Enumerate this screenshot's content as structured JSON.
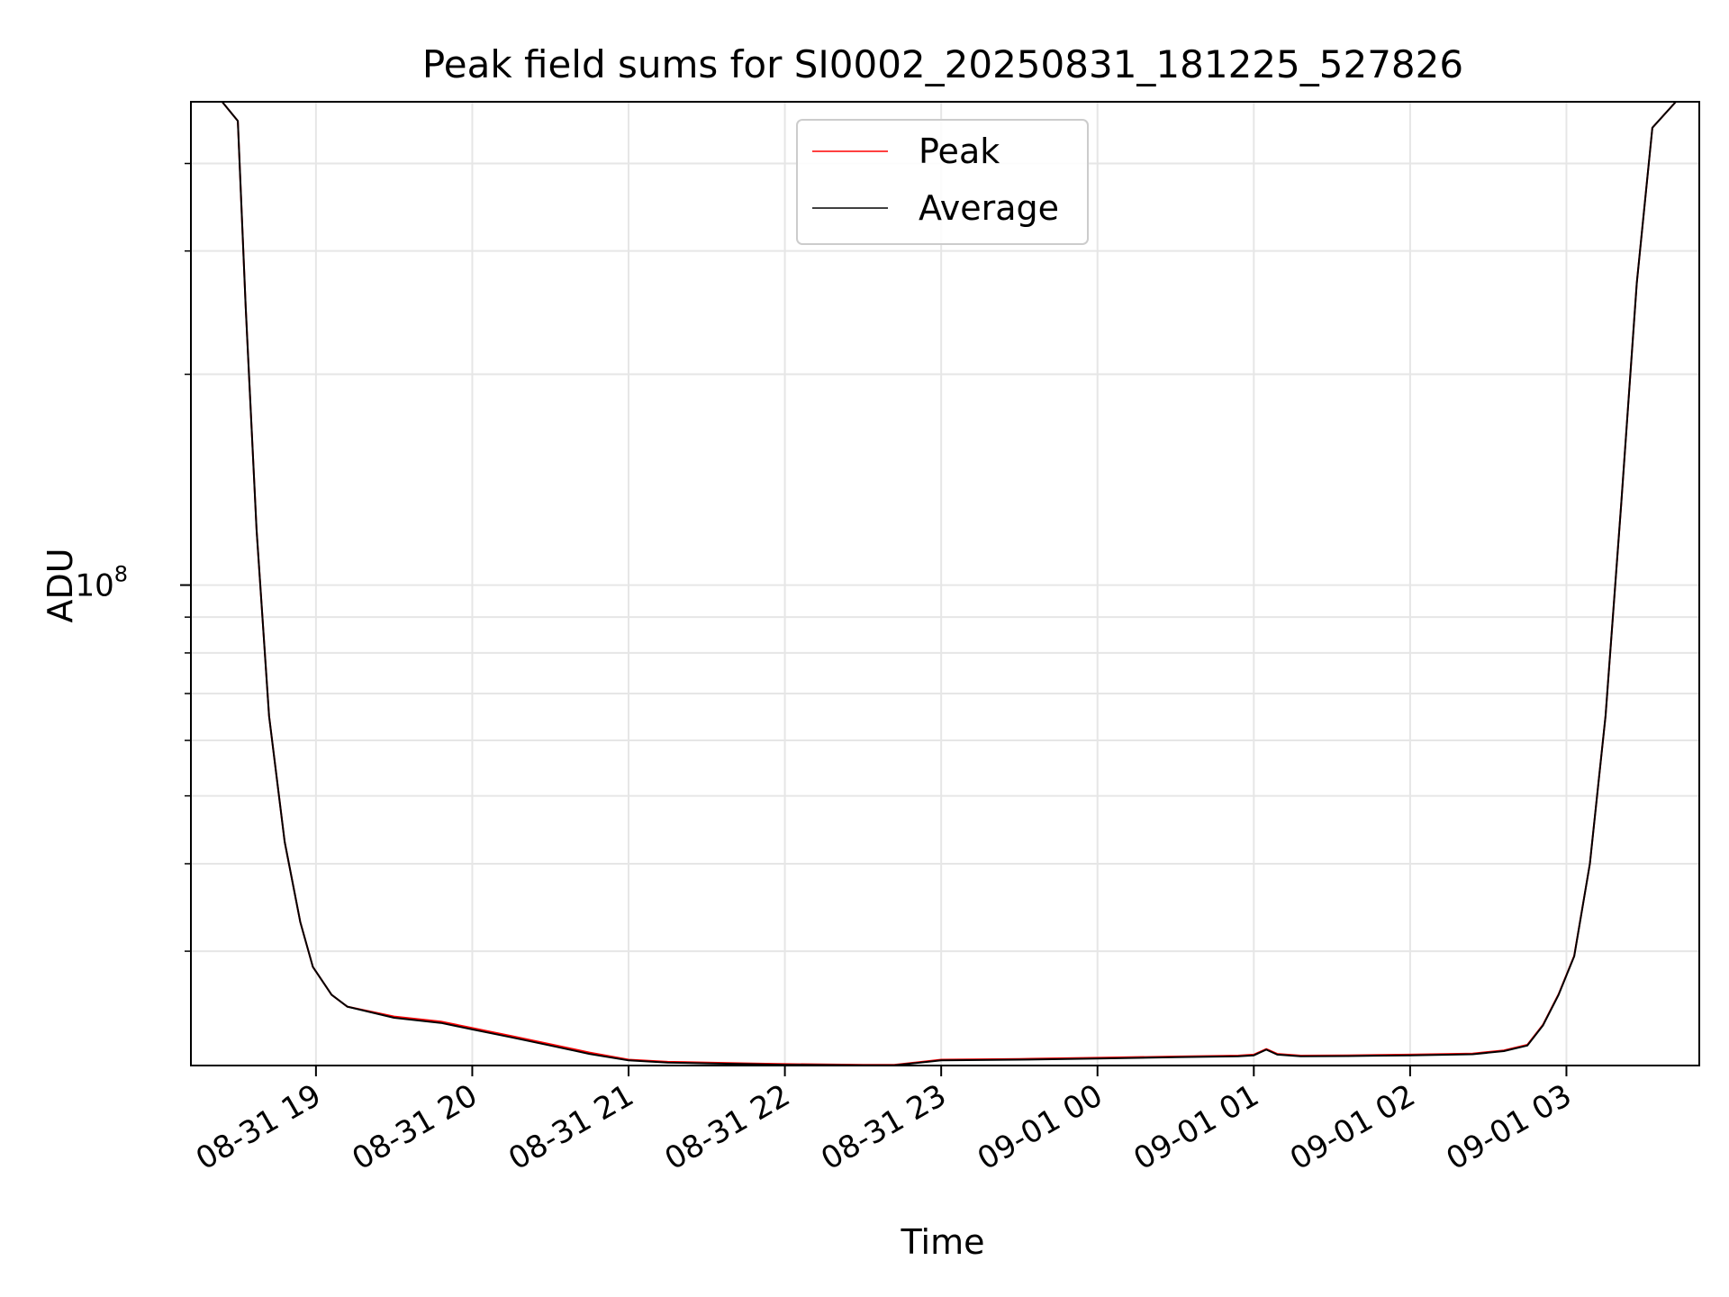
{
  "chart_data": {
    "type": "line",
    "title": "Peak field sums for SI0002_20250831_181225_527826",
    "xlabel": "Time",
    "ylabel": "ADU",
    "yscale": "log",
    "ylim": [
      20600000,
      490000000
    ],
    "xlim_hours": [
      18.2,
      27.85
    ],
    "grid": true,
    "legend_position": "top-center",
    "x_ticks": [
      {
        "hour": 19,
        "label": "08-31 19"
      },
      {
        "hour": 20,
        "label": "08-31 20"
      },
      {
        "hour": 21,
        "label": "08-31 21"
      },
      {
        "hour": 22,
        "label": "08-31 22"
      },
      {
        "hour": 23,
        "label": "08-31 23"
      },
      {
        "hour": 24,
        "label": "09-01 00"
      },
      {
        "hour": 25,
        "label": "09-01 01"
      },
      {
        "hour": 26,
        "label": "09-01 02"
      },
      {
        "hour": 27,
        "label": "09-01 03"
      }
    ],
    "y_major_ticks": [
      {
        "value": 100000000,
        "base": "10",
        "exp": "8"
      }
    ],
    "y_minor_ticks": [
      30000000,
      40000000,
      50000000,
      60000000,
      70000000,
      80000000,
      90000000,
      200000000,
      300000000,
      400000000
    ],
    "series": [
      {
        "name": "Average",
        "color": "#000000",
        "x_hours": [
          18.2,
          18.4,
          18.5,
          18.55,
          18.62,
          18.7,
          18.8,
          18.9,
          18.98,
          19.1,
          19.2,
          19.5,
          19.8,
          20.0,
          20.25,
          20.5,
          20.75,
          21.0,
          21.25,
          21.5,
          21.75,
          22.0,
          22.5,
          22.7,
          23.0,
          23.5,
          24.0,
          24.5,
          24.9,
          25.0,
          25.08,
          25.15,
          25.3,
          25.6,
          26.0,
          26.4,
          26.6,
          26.75,
          26.85,
          26.95,
          27.05,
          27.15,
          27.25,
          27.35,
          27.45,
          27.55,
          27.7,
          27.85
        ],
        "values": [
          490000000,
          490000000,
          460000000,
          250000000,
          120000000,
          65000000,
          43000000,
          33000000,
          28500000,
          26000000,
          25000000,
          24100000,
          23700000,
          23200000,
          22600000,
          22000000,
          21400000,
          20950000,
          20800000,
          20750000,
          20700000,
          20650000,
          20620000,
          20610000,
          20950000,
          21000000,
          21080000,
          21170000,
          21230000,
          21300000,
          21700000,
          21350000,
          21230000,
          21250000,
          21300000,
          21380000,
          21600000,
          22000000,
          23500000,
          26000000,
          29500000,
          40000000,
          65000000,
          130000000,
          270000000,
          450000000,
          490000000,
          490000000
        ]
      },
      {
        "name": "Peak",
        "color": "#ff0000",
        "x_hours": [
          18.2,
          18.4,
          18.5,
          18.55,
          18.62,
          18.7,
          18.8,
          18.9,
          18.98,
          19.1,
          19.2,
          19.5,
          19.8,
          20.0,
          20.25,
          20.5,
          20.75,
          21.0,
          21.25,
          21.5,
          21.75,
          22.0,
          22.5,
          22.7,
          23.0,
          23.5,
          24.0,
          24.5,
          24.9,
          25.0,
          25.08,
          25.15,
          25.3,
          25.6,
          26.0,
          26.4,
          26.6,
          26.75,
          26.85,
          26.95,
          27.05,
          27.15,
          27.25,
          27.35,
          27.45,
          27.55,
          27.7,
          27.85
        ],
        "values": [
          490000000,
          490000000,
          460000000,
          250000000,
          120000000,
          65000000,
          43000000,
          33000000,
          28500000,
          26000000,
          25000000,
          24200000,
          23800000,
          23300000,
          22700000,
          22100000,
          21500000,
          21000000,
          20850000,
          20800000,
          20750000,
          20700000,
          20650000,
          20640000,
          21000000,
          21050000,
          21130000,
          21220000,
          21280000,
          21350000,
          21750000,
          21400000,
          21280000,
          21300000,
          21350000,
          21430000,
          21650000,
          22050000,
          23550000,
          26050000,
          29550000,
          40000000,
          65000000,
          130000000,
          270000000,
          450000000,
          490000000,
          490000000
        ]
      }
    ]
  }
}
